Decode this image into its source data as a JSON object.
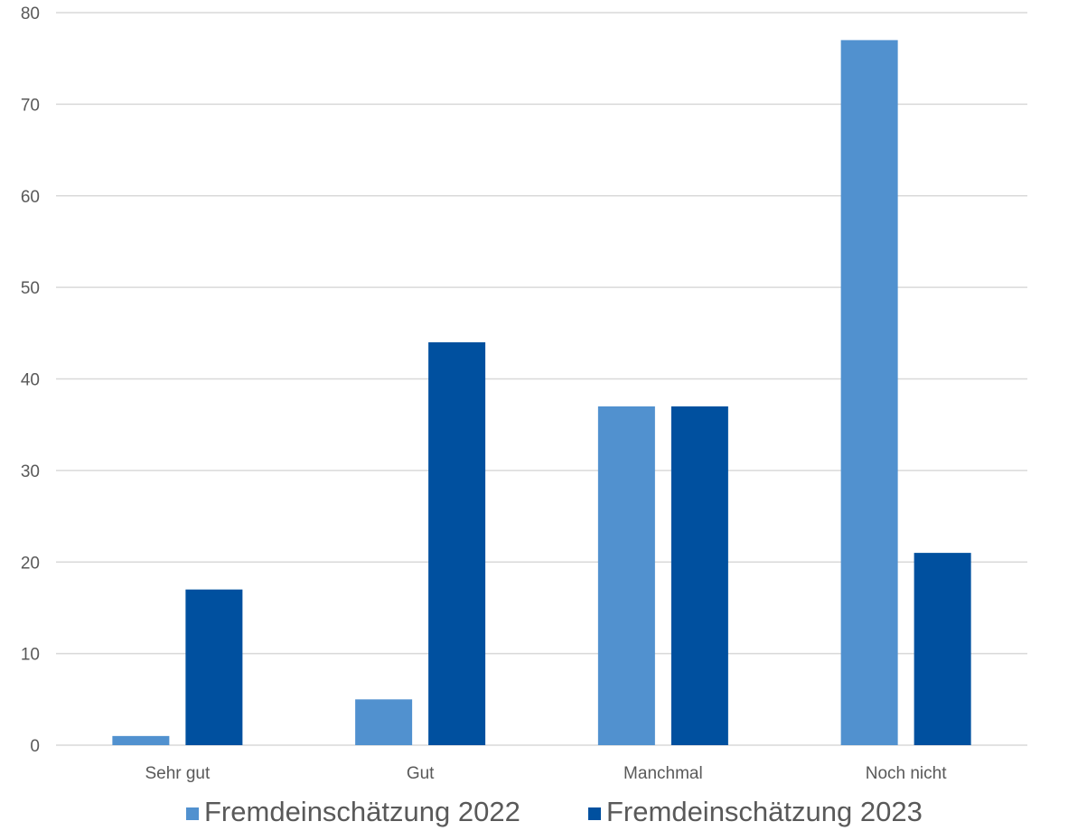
{
  "chart_data": {
    "type": "bar",
    "categories": [
      "Sehr gut",
      "Gut",
      "Manchmal",
      "Noch nicht"
    ],
    "series": [
      {
        "name": "Fremdeinschätzung 2022",
        "color": "#5191cf",
        "values": [
          1,
          5,
          37,
          77
        ]
      },
      {
        "name": "Fremdeinschätzung 2023",
        "color": "#00509f",
        "values": [
          17,
          44,
          37,
          21
        ]
      }
    ],
    "yticks": [
      "0",
      "10",
      "20",
      "30",
      "40",
      "50",
      "60",
      "70",
      "80"
    ],
    "ylim": [
      0,
      80
    ],
    "grid": true,
    "legend_position": "bottom"
  }
}
